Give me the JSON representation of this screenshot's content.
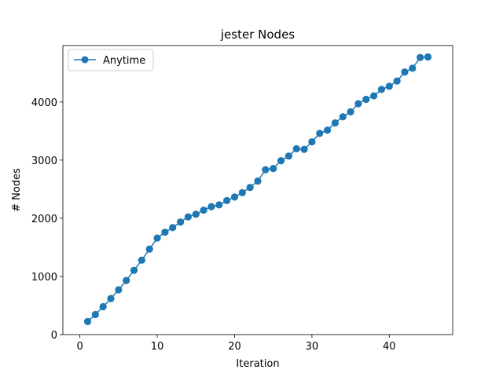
{
  "chart_data": {
    "type": "line",
    "title": "jester Nodes",
    "xlabel": "Iteration",
    "ylabel": "# Nodes",
    "xlim": [
      -2.2,
      48.2
    ],
    "ylim": [
      0,
      4970
    ],
    "xticks": [
      0,
      10,
      20,
      30,
      40
    ],
    "yticks": [
      0,
      1000,
      2000,
      3000,
      4000
    ],
    "grid": false,
    "legend_position": "top-left",
    "series": [
      {
        "name": "Anytime",
        "color": "#1f77b4",
        "marker": "circle",
        "x": [
          1,
          2,
          3,
          4,
          5,
          6,
          7,
          8,
          9,
          10,
          11,
          12,
          13,
          14,
          15,
          16,
          17,
          18,
          19,
          20,
          21,
          22,
          23,
          24,
          25,
          26,
          27,
          28,
          29,
          30,
          31,
          32,
          33,
          34,
          35,
          36,
          37,
          38,
          39,
          40,
          41,
          42,
          43,
          44,
          45
        ],
        "y": [
          225,
          345,
          480,
          620,
          770,
          930,
          1105,
          1280,
          1470,
          1660,
          1760,
          1840,
          1935,
          2025,
          2070,
          2140,
          2200,
          2230,
          2305,
          2365,
          2440,
          2530,
          2640,
          2835,
          2855,
          2990,
          3070,
          3195,
          3185,
          3315,
          3460,
          3515,
          3640,
          3745,
          3830,
          3970,
          4045,
          4105,
          4215,
          4270,
          4360,
          4515,
          4580,
          4765,
          4775
        ]
      }
    ]
  }
}
